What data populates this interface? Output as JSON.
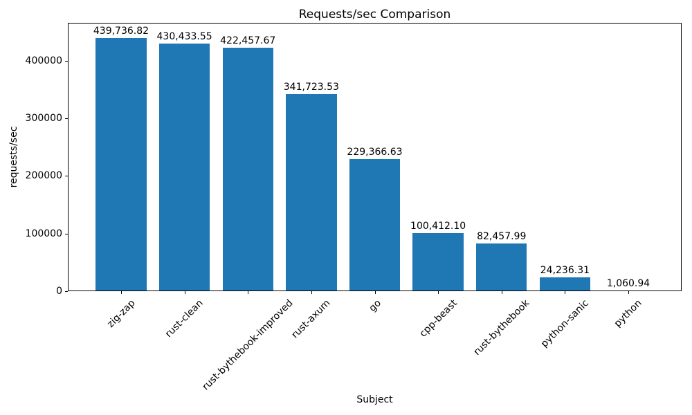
{
  "chart_data": {
    "type": "bar",
    "title": "Requests/sec Comparison",
    "xlabel": "Subject",
    "ylabel": "requests/sec",
    "categories": [
      "zig-zap",
      "rust-clean",
      "rust-bythebook-improved",
      "rust-axum",
      "go",
      "cpp-beast",
      "rust-bythebook",
      "python-sanic",
      "python"
    ],
    "values": [
      439736.82,
      430433.55,
      422457.67,
      341723.53,
      229366.63,
      100412.1,
      82457.99,
      24236.31,
      1060.94
    ],
    "value_labels": [
      "439,736.82",
      "430,433.55",
      "422,457.67",
      "341,723.53",
      "229,366.63",
      "100,412.10",
      "82,457.99",
      "24,236.31",
      "1,060.94"
    ],
    "yticks": [
      0,
      100000,
      200000,
      300000,
      400000
    ],
    "ylim": [
      0,
      466000
    ],
    "bar_color": "#1f77b4",
    "grid": false,
    "legend": null
  }
}
